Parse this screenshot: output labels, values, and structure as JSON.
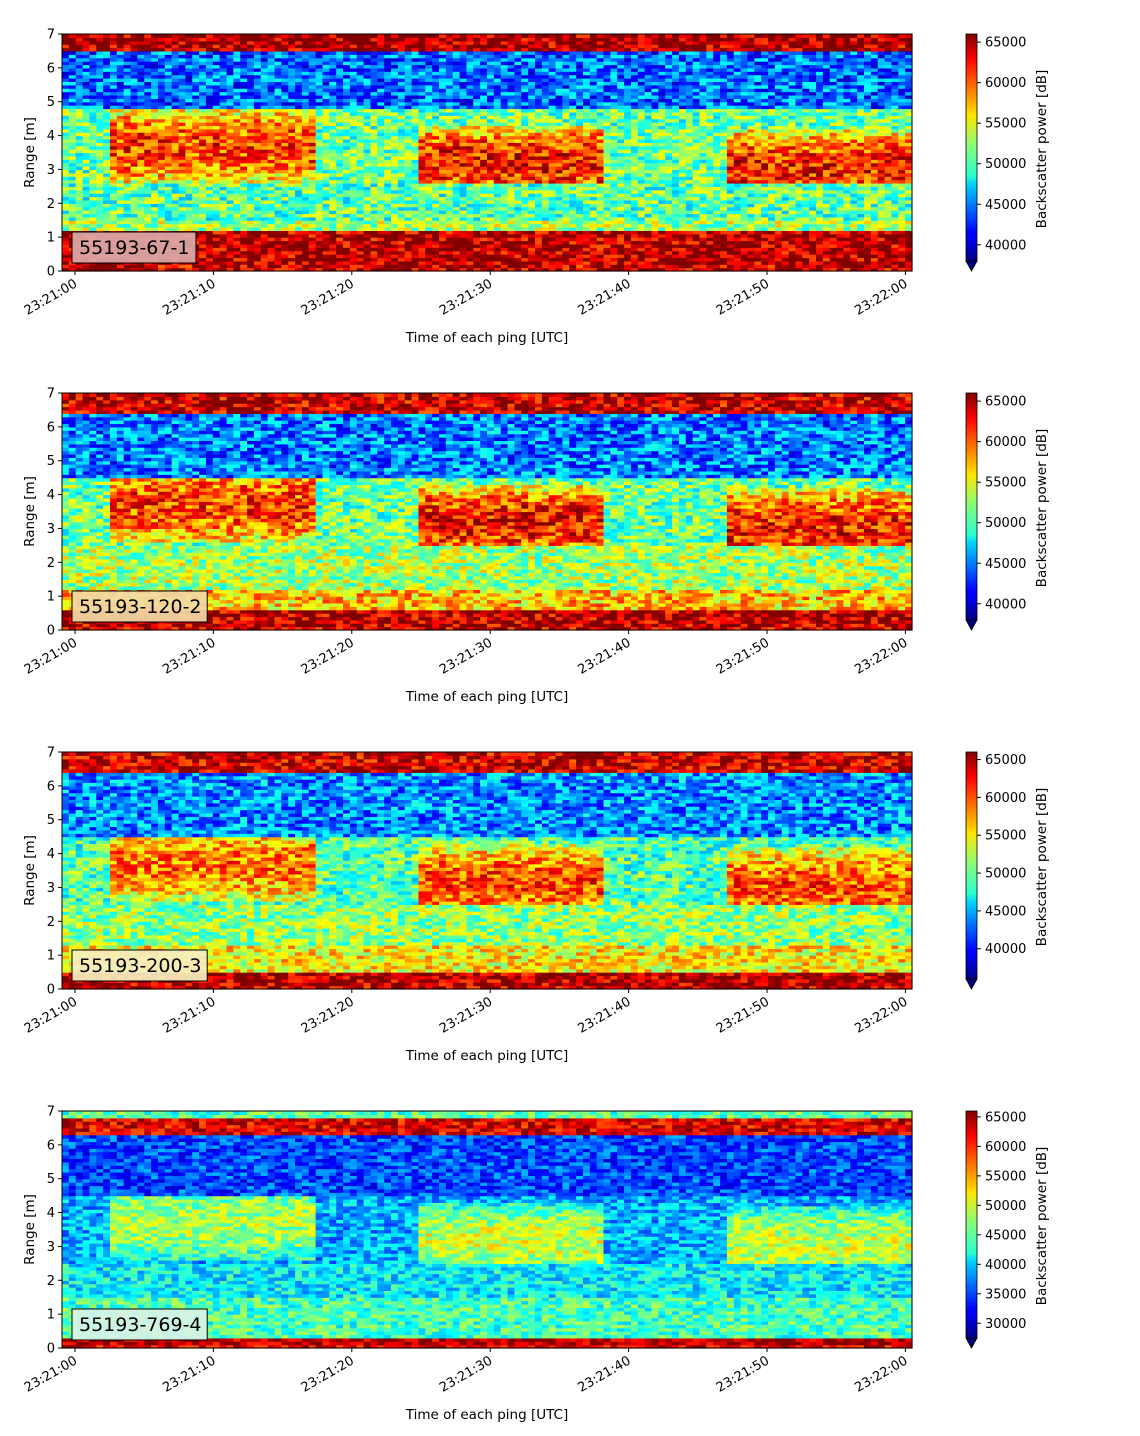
{
  "chart_data": [
    {
      "type": "heatmap",
      "panel_label": "55193-67-1",
      "panel_label_bg": "#dba9a9",
      "xlabel": "Time of each ping [UTC]",
      "ylabel": "Range [m]",
      "x_ticks": [
        "23:21:00",
        "23:21:10",
        "23:21:20",
        "23:21:30",
        "23:21:40",
        "23:21:50",
        "23:22:00"
      ],
      "ylim": [
        0,
        7
      ],
      "y_ticks": [
        0,
        1,
        2,
        3,
        4,
        5,
        6,
        7
      ],
      "colorbar_label": "Backscatter power [dB]",
      "colorbar_ticks": [
        40000,
        45000,
        50000,
        55000,
        60000,
        65000
      ],
      "colorbar_range": [
        38000,
        66000
      ],
      "colormap": "jet",
      "colorbar_extend": "min",
      "layers": [
        {
          "from": 0,
          "to": 0.25,
          "value": 64000
        },
        {
          "from": 0.25,
          "to": 1.2,
          "value": 64500
        },
        {
          "from": 1.2,
          "to": 1.5,
          "value": 53000
        },
        {
          "from": 1.5,
          "to": 2.6,
          "value": 51000
        },
        {
          "from": 2.6,
          "to": 4.8,
          "value": 56000,
          "pattern": "schools"
        },
        {
          "from": 4.8,
          "to": 6.5,
          "value": 44500
        },
        {
          "from": 6.5,
          "to": 7.0,
          "value": 65000
        }
      ]
    },
    {
      "type": "heatmap",
      "panel_label": "55193-120-2",
      "panel_label_bg": "#f2d9a6",
      "xlabel": "Time of each ping [UTC]",
      "ylabel": "Range [m]",
      "x_ticks": [
        "23:21:00",
        "23:21:10",
        "23:21:20",
        "23:21:30",
        "23:21:40",
        "23:21:50",
        "23:22:00"
      ],
      "ylim": [
        0,
        7
      ],
      "y_ticks": [
        0,
        1,
        2,
        3,
        4,
        5,
        6,
        7
      ],
      "colorbar_label": "Backscatter power [dB]",
      "colorbar_ticks": [
        40000,
        45000,
        50000,
        55000,
        60000,
        65000
      ],
      "colorbar_range": [
        38000,
        66000
      ],
      "colormap": "jet",
      "colorbar_extend": "min",
      "layers": [
        {
          "from": 0,
          "to": 0.15,
          "value": 64000
        },
        {
          "from": 0.15,
          "to": 0.6,
          "value": 64500
        },
        {
          "from": 0.6,
          "to": 1.2,
          "value": 57000
        },
        {
          "from": 1.2,
          "to": 2.5,
          "value": 53000
        },
        {
          "from": 2.5,
          "to": 4.5,
          "value": 56000,
          "pattern": "schools"
        },
        {
          "from": 4.5,
          "to": 6.4,
          "value": 45000
        },
        {
          "from": 6.4,
          "to": 7.0,
          "value": 64000
        }
      ]
    },
    {
      "type": "heatmap",
      "panel_label": "55193-200-3",
      "panel_label_bg": "#f6efc0",
      "xlabel": "Time of each ping [UTC]",
      "ylabel": "Range [m]",
      "x_ticks": [
        "23:21:00",
        "23:21:10",
        "23:21:20",
        "23:21:30",
        "23:21:40",
        "23:21:50",
        "23:22:00"
      ],
      "ylim": [
        0,
        7
      ],
      "y_ticks": [
        0,
        1,
        2,
        3,
        4,
        5,
        6,
        7
      ],
      "colorbar_label": "Backscatter power [dB]",
      "colorbar_ticks": [
        40000,
        45000,
        50000,
        55000,
        60000,
        65000
      ],
      "colorbar_range": [
        36000,
        66000
      ],
      "colormap": "jet",
      "colorbar_extend": "min",
      "layers": [
        {
          "from": 0,
          "to": 0.15,
          "value": 64000
        },
        {
          "from": 0.15,
          "to": 0.45,
          "value": 64500
        },
        {
          "from": 0.45,
          "to": 1.3,
          "value": 55000
        },
        {
          "from": 1.3,
          "to": 2.5,
          "value": 51500
        },
        {
          "from": 2.5,
          "to": 4.5,
          "value": 54000,
          "pattern": "schools"
        },
        {
          "from": 4.5,
          "to": 6.4,
          "value": 44000
        },
        {
          "from": 6.4,
          "to": 7.0,
          "value": 63500
        }
      ]
    },
    {
      "type": "heatmap",
      "panel_label": "55193-769-4",
      "panel_label_bg": "#d9f3e6",
      "xlabel": "Time of each ping [UTC]",
      "ylabel": "Range [m]",
      "x_ticks": [
        "23:21:00",
        "23:21:10",
        "23:21:20",
        "23:21:30",
        "23:21:40",
        "23:21:50",
        "23:22:00"
      ],
      "ylim": [
        0,
        7
      ],
      "y_ticks": [
        0,
        1,
        2,
        3,
        4,
        5,
        6,
        7
      ],
      "colorbar_label": "Backscatter power [dB]",
      "colorbar_ticks": [
        30000,
        35000,
        40000,
        45000,
        50000,
        55000,
        60000,
        65000
      ],
      "colorbar_range": [
        27500,
        66000
      ],
      "colormap": "jet",
      "colorbar_extend": "min",
      "layers": [
        {
          "from": 0,
          "to": 0.15,
          "value": 62000
        },
        {
          "from": 0.15,
          "to": 0.35,
          "value": 64000
        },
        {
          "from": 0.35,
          "to": 1.5,
          "value": 44500
        },
        {
          "from": 1.5,
          "to": 2.5,
          "value": 41500
        },
        {
          "from": 2.5,
          "to": 4.5,
          "value": 43500,
          "pattern": "schools"
        },
        {
          "from": 4.5,
          "to": 6.3,
          "value": 35000
        },
        {
          "from": 6.3,
          "to": 6.8,
          "value": 62000
        },
        {
          "from": 6.8,
          "to": 7.0,
          "value": 45000
        }
      ]
    }
  ]
}
